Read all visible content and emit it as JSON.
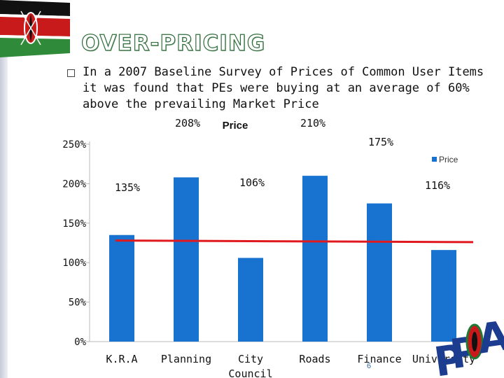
{
  "slide": {
    "title": "OVER-PRICING",
    "bullet_text": "In a 2007 Baseline Survey of Prices of Common User Items it was found that PEs were buying at an average of 60% above the prevailing Market Price",
    "page_number": "6",
    "logo_text": "PPOA"
  },
  "colors": {
    "bar": "#1873d0",
    "trend_line": "#e0191f",
    "title_stroke": "#2f6e3b"
  },
  "chart_data": {
    "type": "bar",
    "title": "Price",
    "categories": [
      "K.R.A",
      "Planning",
      "City Council",
      "Roads",
      "Finance",
      "University"
    ],
    "category_lines": [
      [
        "K.R.A"
      ],
      [
        "Planning"
      ],
      [
        "City",
        "Council"
      ],
      [
        "Roads"
      ],
      [
        "Finance"
      ],
      [
        "University"
      ]
    ],
    "series": [
      {
        "name": "Price",
        "values": [
          135,
          208,
          106,
          210,
          175,
          116
        ]
      }
    ],
    "data_labels": [
      "135%",
      "208%",
      "106%",
      "210%",
      "175%",
      "116%"
    ],
    "y_ticks": [
      0,
      50,
      100,
      150,
      200,
      250
    ],
    "y_tick_labels": [
      "0%",
      "50%",
      "100%",
      "150%",
      "200%",
      "250%"
    ],
    "ylim": [
      0,
      250
    ],
    "legend": {
      "position": "top-right",
      "label": "Price"
    },
    "reference_line": {
      "start": 128,
      "end": 126
    },
    "grid": false
  }
}
